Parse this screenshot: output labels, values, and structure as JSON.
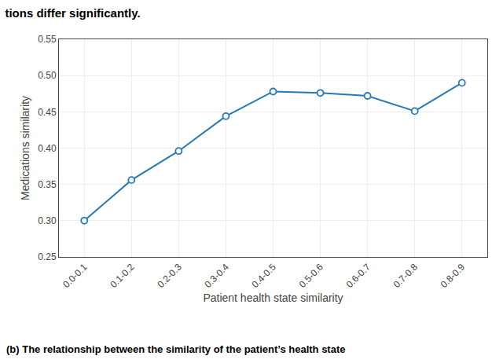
{
  "chart_data": {
    "type": "line",
    "title": "tions differ significantly.",
    "annotations": [
      "(b) The relationship between the similarity of the patient’s health state"
    ],
    "x_label": "Patient health state similarity",
    "y_label": "Medications similarity",
    "categories": [
      "0.0-0.1",
      "0.1-0.2",
      "0.2-0.3",
      "0.3-0.4",
      "0.4-0.5",
      "0.5-0.6",
      "0.6-0.7",
      "0.7-0.8",
      "0.8-0.9"
    ],
    "values": [
      0.3,
      0.356,
      0.396,
      0.444,
      0.478,
      0.476,
      0.472,
      0.451,
      0.49
    ],
    "color": "#2878b5",
    "marker": "circle",
    "ylim": [
      0.25,
      0.55
    ],
    "yticks": [
      0.25,
      {
        "value": 0.3,
        "label": "0.30"
      },
      0.35,
      {
        "value": 0.4,
        "label": "0.40"
      },
      0.45,
      {
        "value": 0.5,
        "label": "0.50"
      },
      0.55
    ],
    "grid": true
  }
}
